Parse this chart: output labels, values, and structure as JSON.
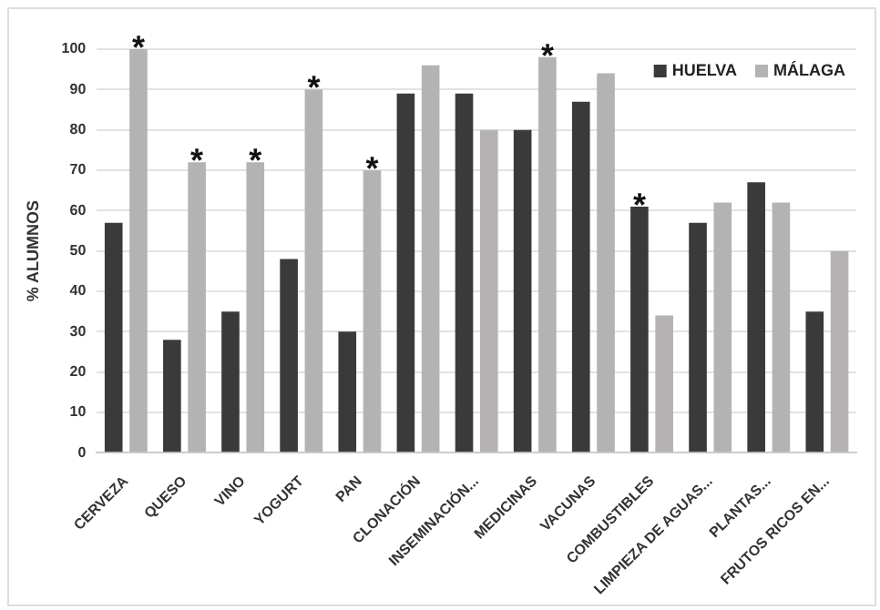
{
  "chart_data": {
    "type": "bar",
    "ylabel": "% ALUMNOS",
    "categories": [
      "CERVEZA",
      "QUESO",
      "VINO",
      "YOGURT",
      "PAN",
      "CLONACIÓN",
      "INSEMINACIÓN...",
      "MEDICINAS",
      "VACUNAS",
      "COMBUSTIBLES",
      "LIMPIEZA DE AGUAS...",
      "PLANTAS...",
      "FRUTOS RICOS EN..."
    ],
    "series": [
      {
        "name": "HUELVA",
        "color": "#3a3a3a",
        "values": [
          57,
          28,
          35,
          48,
          30,
          89,
          89,
          80,
          87,
          61,
          57,
          67,
          35
        ]
      },
      {
        "name": "MÁLAGA",
        "color": "#b4b2b2",
        "values": [
          100,
          72,
          72,
          90,
          70,
          96,
          80,
          98,
          94,
          34,
          62,
          62,
          50
        ]
      }
    ],
    "ylim": [
      0,
      100
    ],
    "yticks": [
      0,
      10,
      20,
      30,
      40,
      50,
      60,
      70,
      80,
      90,
      100
    ],
    "grid": "y",
    "legend": "top right",
    "annotations": [
      {
        "text": "*",
        "x": "CERVEZA",
        "y": 100
      },
      {
        "text": "*",
        "x": "QUESO",
        "y": 72
      },
      {
        "text": "*",
        "x": "VINO",
        "y": 72
      },
      {
        "text": "*",
        "x": "YOGURT",
        "y": 90
      },
      {
        "text": "*",
        "x": "PAN",
        "y": 70
      },
      {
        "text": "*",
        "x": "MEDICINAS",
        "y": 98
      },
      {
        "text": "*",
        "x": "COMBUSTIBLES",
        "y": 61
      }
    ]
  }
}
